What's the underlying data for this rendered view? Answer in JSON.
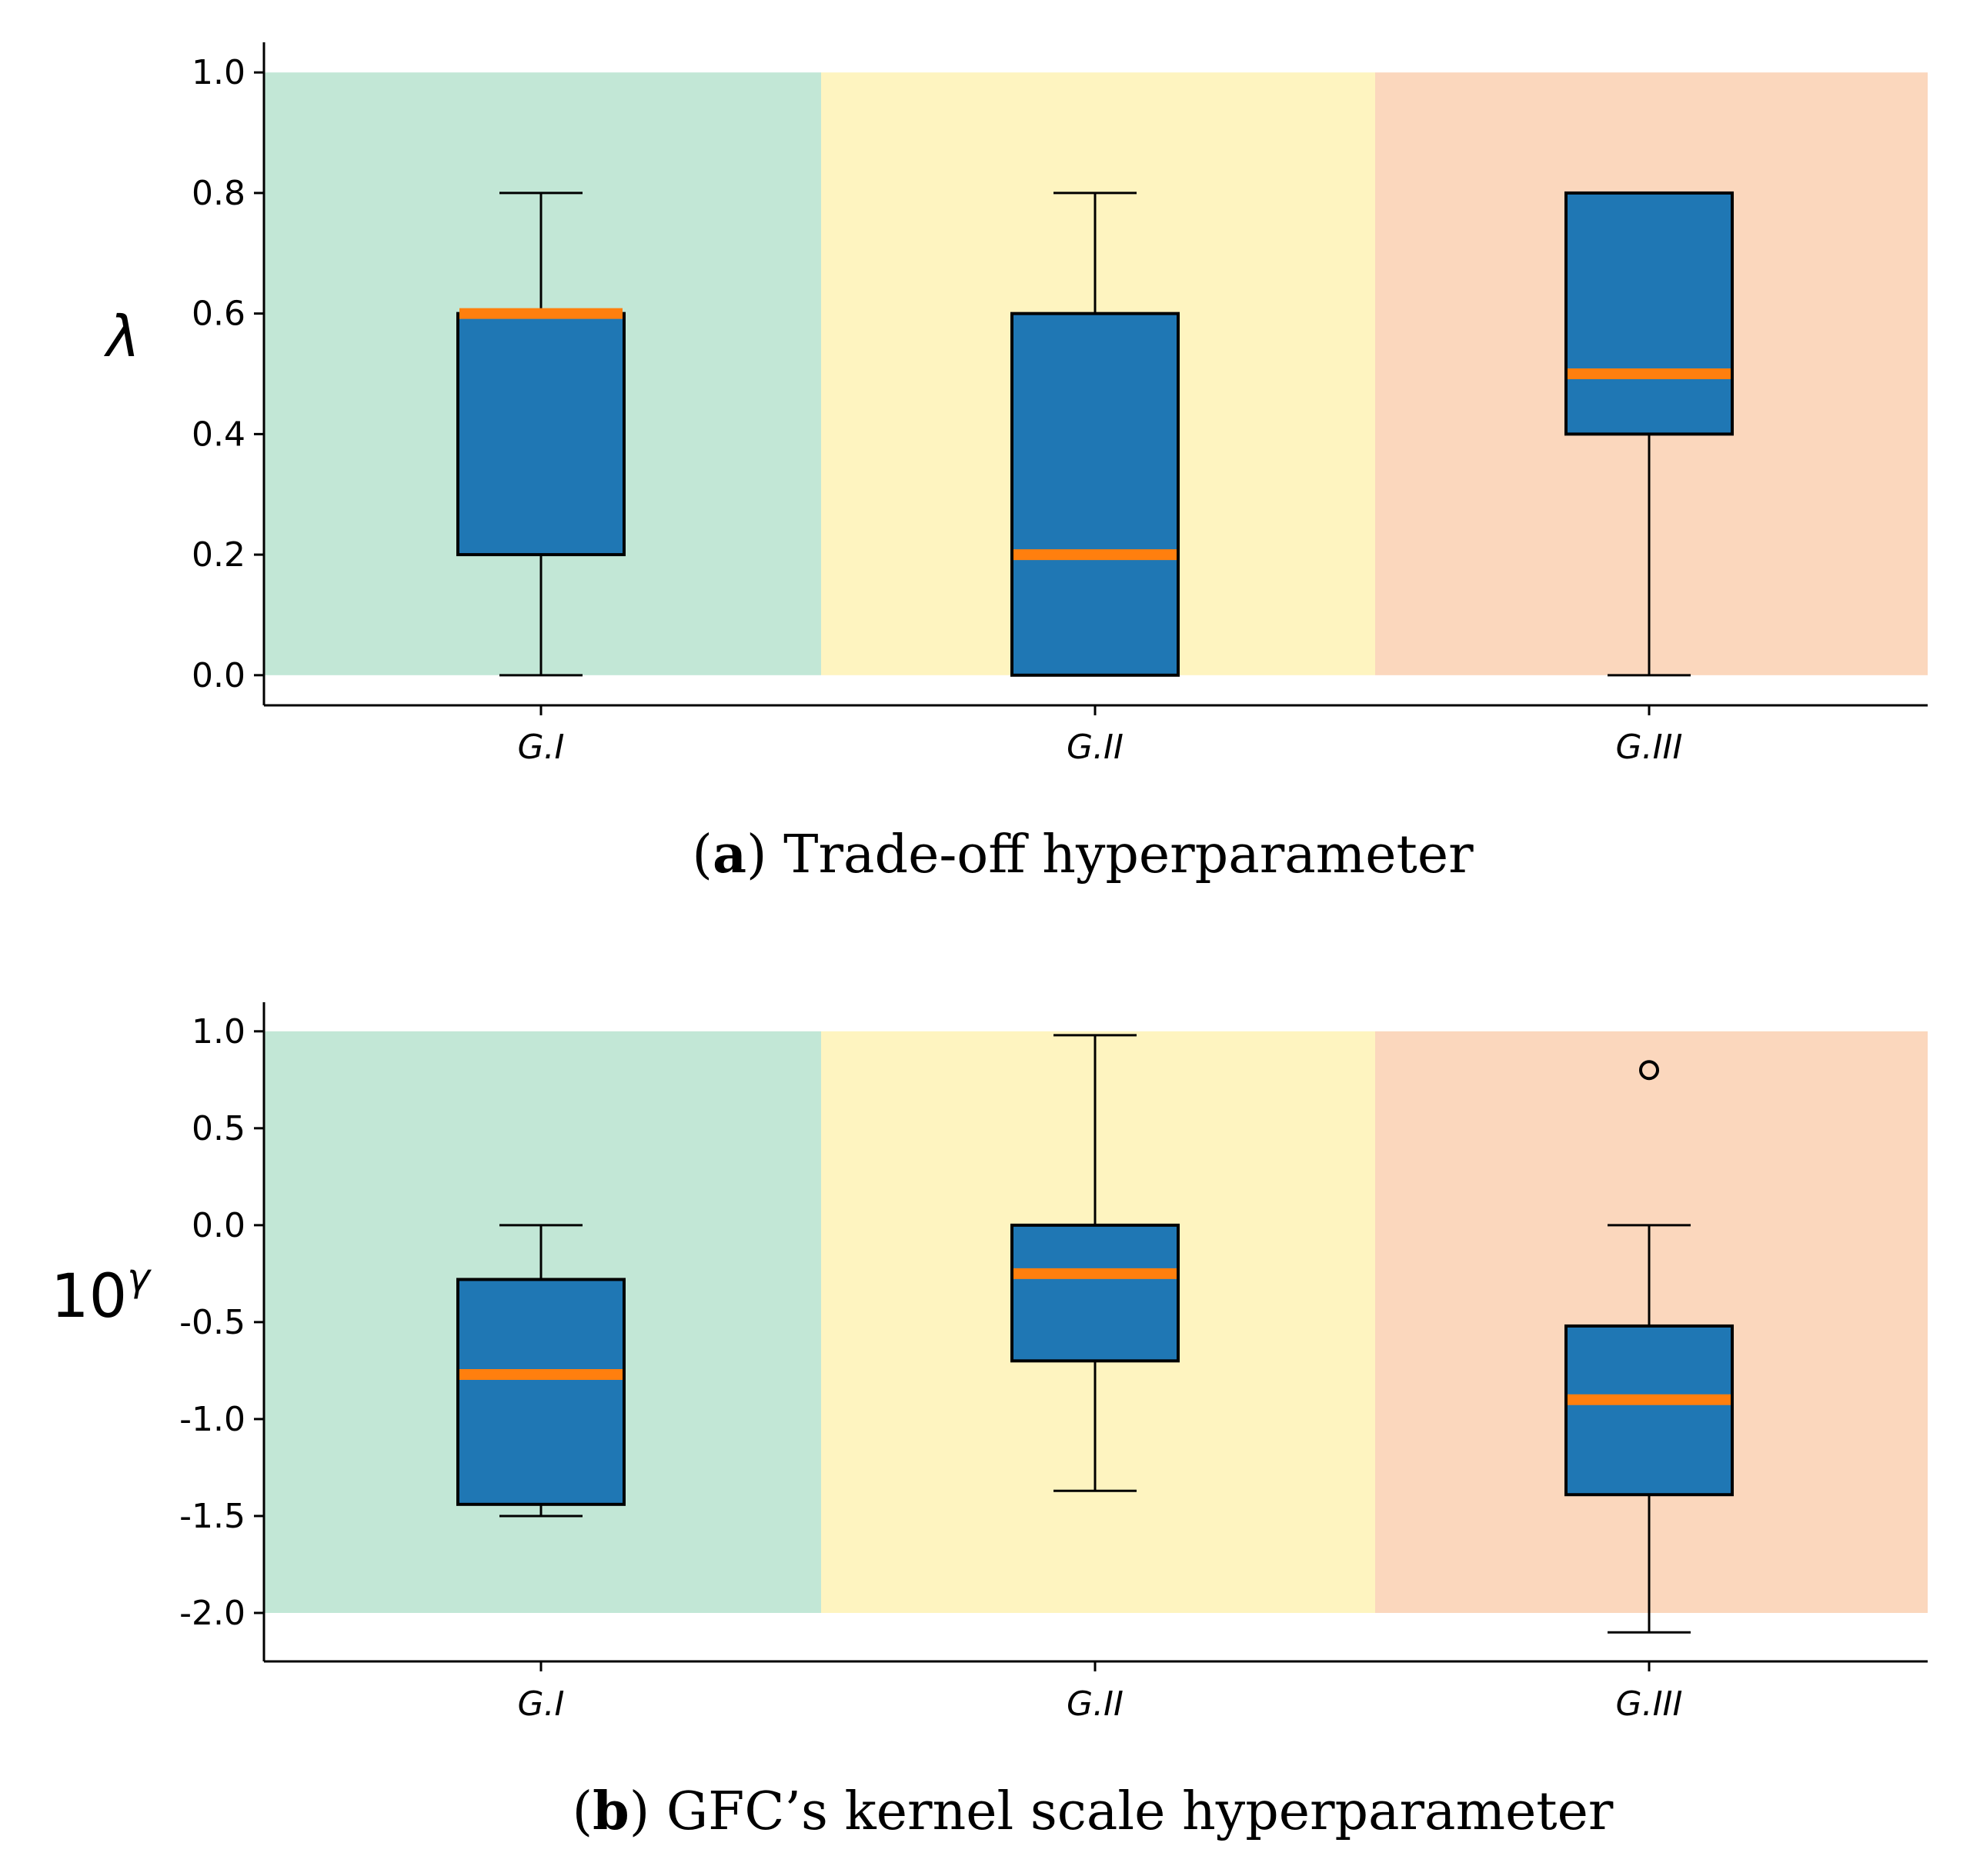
{
  "colors": {
    "box": "#1f77b4",
    "median": "#ff7f0e",
    "regions": [
      "#c2e7d6",
      "#fef4c0",
      "#fbd7bd"
    ]
  },
  "chart_data": [
    {
      "type": "box",
      "caption": {
        "letter": "a",
        "text": "Trade-off hyperparameter"
      },
      "ylabel": "λ",
      "categories": [
        "G.I",
        "G.II",
        "G.III"
      ],
      "yticks": [
        "0.0",
        "0.2",
        "0.4",
        "0.6",
        "0.8",
        "1.0"
      ],
      "ytick_values": [
        0.0,
        0.2,
        0.4,
        0.6,
        0.8,
        1.0
      ],
      "ylim": [
        -0.05,
        1.05
      ],
      "region_range": [
        0.0,
        1.0
      ],
      "boxes": [
        {
          "whisker_low": 0.0,
          "q1": 0.2,
          "median": 0.6,
          "q3": 0.6,
          "whisker_high": 0.8,
          "outliers": []
        },
        {
          "whisker_low": 0.0,
          "q1": 0.0,
          "median": 0.2,
          "q3": 0.6,
          "whisker_high": 0.8,
          "outliers": []
        },
        {
          "whisker_low": 0.0,
          "q1": 0.4,
          "median": 0.5,
          "q3": 0.8,
          "whisker_high": 0.8,
          "outliers": []
        }
      ]
    },
    {
      "type": "box",
      "caption": {
        "letter": "b",
        "text": "GFC’s kernel scale hyperparameter"
      },
      "ylabel": "10",
      "ylabel_superscript": "γ",
      "categories": [
        "G.I",
        "G.II",
        "G.III"
      ],
      "yticks": [
        "-2.0",
        "-1.5",
        "-1.0",
        "-0.5",
        "0.0",
        "0.5",
        "1.0"
      ],
      "ytick_values": [
        -2.0,
        -1.5,
        -1.0,
        -0.5,
        0.0,
        0.5,
        1.0
      ],
      "ylim": [
        -2.25,
        1.15
      ],
      "region_range": [
        -2.0,
        1.0
      ],
      "boxes": [
        {
          "whisker_low": -1.5,
          "q1": -1.44,
          "median": -0.77,
          "q3": -0.28,
          "whisker_high": 0.0,
          "outliers": []
        },
        {
          "whisker_low": -1.37,
          "q1": -0.7,
          "median": -0.25,
          "q3": 0.0,
          "whisker_high": 0.98,
          "outliers": []
        },
        {
          "whisker_low": -2.1,
          "q1": -1.39,
          "median": -0.9,
          "q3": -0.52,
          "whisker_high": 0.0,
          "outliers": [
            0.8
          ]
        }
      ]
    }
  ]
}
